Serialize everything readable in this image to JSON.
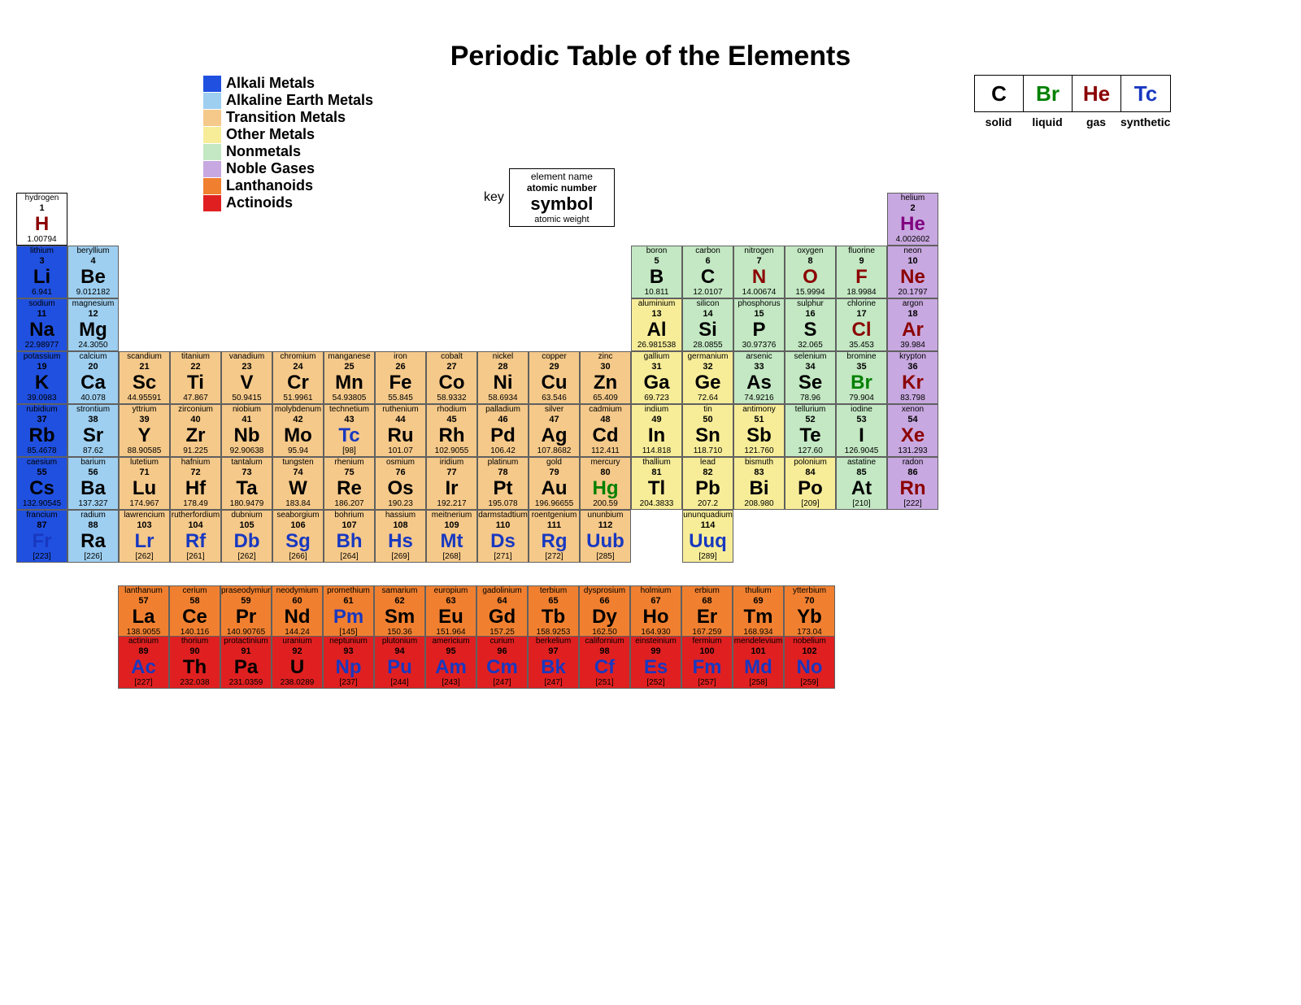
{
  "title": "Periodic Table of the Elements",
  "colors": {
    "alkali": "#2050e0",
    "alkaline_earth": "#9ecff0",
    "transition": "#f5c98a",
    "other_metal": "#f7ed99",
    "nonmetal": "#c3e8c3",
    "noble_gas": "#c8a8e0",
    "lanthanoid": "#f08030",
    "actinoid": "#e02020",
    "hydrogen_bg": "#ffffff",
    "text_black": "#000000",
    "text_darkred": "#8b0000",
    "text_green": "#008000",
    "text_blue": "#1838c0",
    "text_purple": "#800080"
  },
  "legend": [
    {
      "label": "Alkali Metals",
      "color_key": "alkali"
    },
    {
      "label": "Alkaline Earth Metals",
      "color_key": "alkaline_earth"
    },
    {
      "label": "Transition Metals",
      "color_key": "transition"
    },
    {
      "label": "Other Metals",
      "color_key": "other_metal"
    },
    {
      "label": "Nonmetals",
      "color_key": "nonmetal"
    },
    {
      "label": "Noble Gases",
      "color_key": "noble_gas"
    },
    {
      "label": "Lanthanoids",
      "color_key": "lanthanoid"
    },
    {
      "label": "Actinoids",
      "color_key": "actinoid"
    }
  ],
  "phases": [
    {
      "sym": "C",
      "label": "solid",
      "color_key": "text_black"
    },
    {
      "sym": "Br",
      "label": "liquid",
      "color_key": "text_green"
    },
    {
      "sym": "He",
      "label": "gas",
      "color_key": "text_darkred"
    },
    {
      "sym": "Tc",
      "label": "synthetic",
      "color_key": "text_blue"
    }
  ],
  "key": {
    "label": "key",
    "name": "element name",
    "atomic": "atomic number",
    "symbol": "symbol",
    "weight": "atomic weight"
  },
  "main_rows": [
    [
      {
        "n": "hydrogen",
        "a": "1",
        "s": "H",
        "w": "1.00794",
        "cat": "hydrogen_bg",
        "tc": "text_darkred",
        "nb": 1
      },
      null,
      null,
      null,
      null,
      null,
      null,
      null,
      null,
      null,
      null,
      null,
      null,
      null,
      null,
      null,
      null,
      {
        "n": "helium",
        "a": "2",
        "s": "He",
        "w": "4.002602",
        "cat": "noble_gas",
        "tc": "text_purple"
      }
    ],
    [
      {
        "n": "lithium",
        "a": "3",
        "s": "Li",
        "w": "6.941",
        "cat": "alkali",
        "tc": "text_black"
      },
      {
        "n": "beryllium",
        "a": "4",
        "s": "Be",
        "w": "9.012182",
        "cat": "alkaline_earth",
        "tc": "text_black"
      },
      null,
      null,
      null,
      null,
      null,
      null,
      null,
      null,
      null,
      null,
      {
        "n": "boron",
        "a": "5",
        "s": "B",
        "w": "10.811",
        "cat": "nonmetal",
        "tc": "text_black"
      },
      {
        "n": "carbon",
        "a": "6",
        "s": "C",
        "w": "12.0107",
        "cat": "nonmetal",
        "tc": "text_black"
      },
      {
        "n": "nitrogen",
        "a": "7",
        "s": "N",
        "w": "14.00674",
        "cat": "nonmetal",
        "tc": "text_darkred"
      },
      {
        "n": "oxygen",
        "a": "8",
        "s": "O",
        "w": "15.9994",
        "cat": "nonmetal",
        "tc": "text_darkred"
      },
      {
        "n": "fluorine",
        "a": "9",
        "s": "F",
        "w": "18.9984",
        "cat": "nonmetal",
        "tc": "text_darkred"
      },
      {
        "n": "neon",
        "a": "10",
        "s": "Ne",
        "w": "20.1797",
        "cat": "noble_gas",
        "tc": "text_darkred"
      }
    ],
    [
      {
        "n": "sodium",
        "a": "11",
        "s": "Na",
        "w": "22.98977",
        "cat": "alkali",
        "tc": "text_black"
      },
      {
        "n": "magnesium",
        "a": "12",
        "s": "Mg",
        "w": "24.3050",
        "cat": "alkaline_earth",
        "tc": "text_black"
      },
      null,
      null,
      null,
      null,
      null,
      null,
      null,
      null,
      null,
      null,
      {
        "n": "aluminium",
        "a": "13",
        "s": "Al",
        "w": "26.981538",
        "cat": "other_metal",
        "tc": "text_black"
      },
      {
        "n": "silicon",
        "a": "14",
        "s": "Si",
        "w": "28.0855",
        "cat": "nonmetal",
        "tc": "text_black"
      },
      {
        "n": "phosphorus",
        "a": "15",
        "s": "P",
        "w": "30.97376",
        "cat": "nonmetal",
        "tc": "text_black"
      },
      {
        "n": "sulphur",
        "a": "16",
        "s": "S",
        "w": "32.065",
        "cat": "nonmetal",
        "tc": "text_black"
      },
      {
        "n": "chlorine",
        "a": "17",
        "s": "Cl",
        "w": "35.453",
        "cat": "nonmetal",
        "tc": "text_darkred"
      },
      {
        "n": "argon",
        "a": "18",
        "s": "Ar",
        "w": "39.984",
        "cat": "noble_gas",
        "tc": "text_darkred"
      }
    ],
    [
      {
        "n": "potassium",
        "a": "19",
        "s": "K",
        "w": "39.0983",
        "cat": "alkali",
        "tc": "text_black"
      },
      {
        "n": "calcium",
        "a": "20",
        "s": "Ca",
        "w": "40.078",
        "cat": "alkaline_earth",
        "tc": "text_black"
      },
      {
        "n": "scandium",
        "a": "21",
        "s": "Sc",
        "w": "44.95591",
        "cat": "transition",
        "tc": "text_black"
      },
      {
        "n": "titanium",
        "a": "22",
        "s": "Ti",
        "w": "47.867",
        "cat": "transition",
        "tc": "text_black"
      },
      {
        "n": "vanadium",
        "a": "23",
        "s": "V",
        "w": "50.9415",
        "cat": "transition",
        "tc": "text_black"
      },
      {
        "n": "chromium",
        "a": "24",
        "s": "Cr",
        "w": "51.9961",
        "cat": "transition",
        "tc": "text_black"
      },
      {
        "n": "manganese",
        "a": "25",
        "s": "Mn",
        "w": "54.93805",
        "cat": "transition",
        "tc": "text_black"
      },
      {
        "n": "iron",
        "a": "26",
        "s": "Fe",
        "w": "55.845",
        "cat": "transition",
        "tc": "text_black"
      },
      {
        "n": "cobalt",
        "a": "27",
        "s": "Co",
        "w": "58.9332",
        "cat": "transition",
        "tc": "text_black"
      },
      {
        "n": "nickel",
        "a": "28",
        "s": "Ni",
        "w": "58.6934",
        "cat": "transition",
        "tc": "text_black"
      },
      {
        "n": "copper",
        "a": "29",
        "s": "Cu",
        "w": "63.546",
        "cat": "transition",
        "tc": "text_black"
      },
      {
        "n": "zinc",
        "a": "30",
        "s": "Zn",
        "w": "65.409",
        "cat": "transition",
        "tc": "text_black"
      },
      {
        "n": "gallium",
        "a": "31",
        "s": "Ga",
        "w": "69.723",
        "cat": "other_metal",
        "tc": "text_black"
      },
      {
        "n": "germanium",
        "a": "32",
        "s": "Ge",
        "w": "72.64",
        "cat": "other_metal",
        "tc": "text_black"
      },
      {
        "n": "arsenic",
        "a": "33",
        "s": "As",
        "w": "74.9216",
        "cat": "nonmetal",
        "tc": "text_black"
      },
      {
        "n": "selenium",
        "a": "34",
        "s": "Se",
        "w": "78.96",
        "cat": "nonmetal",
        "tc": "text_black"
      },
      {
        "n": "bromine",
        "a": "35",
        "s": "Br",
        "w": "79.904",
        "cat": "nonmetal",
        "tc": "text_green"
      },
      {
        "n": "krypton",
        "a": "36",
        "s": "Kr",
        "w": "83.798",
        "cat": "noble_gas",
        "tc": "text_darkred"
      }
    ],
    [
      {
        "n": "rubidium",
        "a": "37",
        "s": "Rb",
        "w": "85.4678",
        "cat": "alkali",
        "tc": "text_black"
      },
      {
        "n": "strontium",
        "a": "38",
        "s": "Sr",
        "w": "87.62",
        "cat": "alkaline_earth",
        "tc": "text_black"
      },
      {
        "n": "yttrium",
        "a": "39",
        "s": "Y",
        "w": "88.90585",
        "cat": "transition",
        "tc": "text_black"
      },
      {
        "n": "zirconium",
        "a": "40",
        "s": "Zr",
        "w": "91.225",
        "cat": "transition",
        "tc": "text_black"
      },
      {
        "n": "niobium",
        "a": "41",
        "s": "Nb",
        "w": "92.90638",
        "cat": "transition",
        "tc": "text_black"
      },
      {
        "n": "molybdenum",
        "a": "42",
        "s": "Mo",
        "w": "95.94",
        "cat": "transition",
        "tc": "text_black"
      },
      {
        "n": "technetium",
        "a": "43",
        "s": "Tc",
        "w": "[98]",
        "cat": "transition",
        "tc": "text_blue"
      },
      {
        "n": "ruthenium",
        "a": "44",
        "s": "Ru",
        "w": "101.07",
        "cat": "transition",
        "tc": "text_black"
      },
      {
        "n": "rhodium",
        "a": "45",
        "s": "Rh",
        "w": "102.9055",
        "cat": "transition",
        "tc": "text_black"
      },
      {
        "n": "palladium",
        "a": "46",
        "s": "Pd",
        "w": "106.42",
        "cat": "transition",
        "tc": "text_black"
      },
      {
        "n": "silver",
        "a": "47",
        "s": "Ag",
        "w": "107.8682",
        "cat": "transition",
        "tc": "text_black"
      },
      {
        "n": "cadmium",
        "a": "48",
        "s": "Cd",
        "w": "112.411",
        "cat": "transition",
        "tc": "text_black"
      },
      {
        "n": "indium",
        "a": "49",
        "s": "In",
        "w": "114.818",
        "cat": "other_metal",
        "tc": "text_black"
      },
      {
        "n": "tin",
        "a": "50",
        "s": "Sn",
        "w": "118.710",
        "cat": "other_metal",
        "tc": "text_black"
      },
      {
        "n": "antimony",
        "a": "51",
        "s": "Sb",
        "w": "121.760",
        "cat": "other_metal",
        "tc": "text_black"
      },
      {
        "n": "tellurium",
        "a": "52",
        "s": "Te",
        "w": "127.60",
        "cat": "nonmetal",
        "tc": "text_black"
      },
      {
        "n": "iodine",
        "a": "53",
        "s": "I",
        "w": "126.9045",
        "cat": "nonmetal",
        "tc": "text_black"
      },
      {
        "n": "xenon",
        "a": "54",
        "s": "Xe",
        "w": "131.293",
        "cat": "noble_gas",
        "tc": "text_darkred"
      }
    ],
    [
      {
        "n": "caesium",
        "a": "55",
        "s": "Cs",
        "w": "132.90545",
        "cat": "alkali",
        "tc": "text_black"
      },
      {
        "n": "barium",
        "a": "56",
        "s": "Ba",
        "w": "137.327",
        "cat": "alkaline_earth",
        "tc": "text_black"
      },
      {
        "n": "lutetium",
        "a": "71",
        "s": "Lu",
        "w": "174.967",
        "cat": "transition",
        "tc": "text_black"
      },
      {
        "n": "hafnium",
        "a": "72",
        "s": "Hf",
        "w": "178.49",
        "cat": "transition",
        "tc": "text_black"
      },
      {
        "n": "tantalum",
        "a": "73",
        "s": "Ta",
        "w": "180.9479",
        "cat": "transition",
        "tc": "text_black"
      },
      {
        "n": "tungsten",
        "a": "74",
        "s": "W",
        "w": "183.84",
        "cat": "transition",
        "tc": "text_black"
      },
      {
        "n": "rhenium",
        "a": "75",
        "s": "Re",
        "w": "186.207",
        "cat": "transition",
        "tc": "text_black"
      },
      {
        "n": "osmium",
        "a": "76",
        "s": "Os",
        "w": "190.23",
        "cat": "transition",
        "tc": "text_black"
      },
      {
        "n": "iridium",
        "a": "77",
        "s": "Ir",
        "w": "192.217",
        "cat": "transition",
        "tc": "text_black"
      },
      {
        "n": "platinum",
        "a": "78",
        "s": "Pt",
        "w": "195.078",
        "cat": "transition",
        "tc": "text_black"
      },
      {
        "n": "gold",
        "a": "79",
        "s": "Au",
        "w": "196.96655",
        "cat": "transition",
        "tc": "text_black"
      },
      {
        "n": "mercury",
        "a": "80",
        "s": "Hg",
        "w": "200.59",
        "cat": "transition",
        "tc": "text_green"
      },
      {
        "n": "thallium",
        "a": "81",
        "s": "Tl",
        "w": "204.3833",
        "cat": "other_metal",
        "tc": "text_black"
      },
      {
        "n": "lead",
        "a": "82",
        "s": "Pb",
        "w": "207.2",
        "cat": "other_metal",
        "tc": "text_black"
      },
      {
        "n": "bismuth",
        "a": "83",
        "s": "Bi",
        "w": "208.980",
        "cat": "other_metal",
        "tc": "text_black"
      },
      {
        "n": "polonium",
        "a": "84",
        "s": "Po",
        "w": "[209]",
        "cat": "other_metal",
        "tc": "text_black"
      },
      {
        "n": "astatine",
        "a": "85",
        "s": "At",
        "w": "[210]",
        "cat": "nonmetal",
        "tc": "text_black"
      },
      {
        "n": "radon",
        "a": "86",
        "s": "Rn",
        "w": "[222]",
        "cat": "noble_gas",
        "tc": "text_darkred"
      }
    ],
    [
      {
        "n": "francium",
        "a": "87",
        "s": "Fr",
        "w": "[223]",
        "cat": "alkali",
        "tc": "text_blue"
      },
      {
        "n": "radium",
        "a": "88",
        "s": "Ra",
        "w": "[226]",
        "cat": "alkaline_earth",
        "tc": "text_black"
      },
      {
        "n": "lawrencium",
        "a": "103",
        "s": "Lr",
        "w": "[262]",
        "cat": "transition",
        "tc": "text_blue"
      },
      {
        "n": "rutherfordium",
        "a": "104",
        "s": "Rf",
        "w": "[261]",
        "cat": "transition",
        "tc": "text_blue"
      },
      {
        "n": "dubnium",
        "a": "105",
        "s": "Db",
        "w": "[262]",
        "cat": "transition",
        "tc": "text_blue"
      },
      {
        "n": "seaborgium",
        "a": "106",
        "s": "Sg",
        "w": "[266]",
        "cat": "transition",
        "tc": "text_blue"
      },
      {
        "n": "bohrium",
        "a": "107",
        "s": "Bh",
        "w": "[264]",
        "cat": "transition",
        "tc": "text_blue"
      },
      {
        "n": "hassium",
        "a": "108",
        "s": "Hs",
        "w": "[269]",
        "cat": "transition",
        "tc": "text_blue"
      },
      {
        "n": "meitnerium",
        "a": "109",
        "s": "Mt",
        "w": "[268]",
        "cat": "transition",
        "tc": "text_blue"
      },
      {
        "n": "darmstadtium",
        "a": "110",
        "s": "Ds",
        "w": "[271]",
        "cat": "transition",
        "tc": "text_blue"
      },
      {
        "n": "roentgenium",
        "a": "111",
        "s": "Rg",
        "w": "[272]",
        "cat": "transition",
        "tc": "text_blue"
      },
      {
        "n": "ununbium",
        "a": "112",
        "s": "Uub",
        "w": "[285]",
        "cat": "transition",
        "tc": "text_blue"
      },
      null,
      {
        "n": "ununquadium",
        "a": "114",
        "s": "Uuq",
        "w": "[289]",
        "cat": "other_metal",
        "tc": "text_blue"
      },
      null,
      null,
      null,
      null
    ]
  ],
  "lanthanoids": [
    {
      "n": "lanthanum",
      "a": "57",
      "s": "La",
      "w": "138.9055",
      "cat": "lanthanoid",
      "tc": "text_black"
    },
    {
      "n": "cerium",
      "a": "58",
      "s": "Ce",
      "w": "140.116",
      "cat": "lanthanoid",
      "tc": "text_black"
    },
    {
      "n": "praseodymium",
      "a": "59",
      "s": "Pr",
      "w": "140.90765",
      "cat": "lanthanoid",
      "tc": "text_black"
    },
    {
      "n": "neodymium",
      "a": "60",
      "s": "Nd",
      "w": "144.24",
      "cat": "lanthanoid",
      "tc": "text_black"
    },
    {
      "n": "promethium",
      "a": "61",
      "s": "Pm",
      "w": "[145]",
      "cat": "lanthanoid",
      "tc": "text_blue"
    },
    {
      "n": "samarium",
      "a": "62",
      "s": "Sm",
      "w": "150.36",
      "cat": "lanthanoid",
      "tc": "text_black"
    },
    {
      "n": "europium",
      "a": "63",
      "s": "Eu",
      "w": "151.964",
      "cat": "lanthanoid",
      "tc": "text_black"
    },
    {
      "n": "gadolinium",
      "a": "64",
      "s": "Gd",
      "w": "157.25",
      "cat": "lanthanoid",
      "tc": "text_black"
    },
    {
      "n": "terbium",
      "a": "65",
      "s": "Tb",
      "w": "158.9253",
      "cat": "lanthanoid",
      "tc": "text_black"
    },
    {
      "n": "dysprosium",
      "a": "66",
      "s": "Dy",
      "w": "162.50",
      "cat": "lanthanoid",
      "tc": "text_black"
    },
    {
      "n": "holmium",
      "a": "67",
      "s": "Ho",
      "w": "164.930",
      "cat": "lanthanoid",
      "tc": "text_black"
    },
    {
      "n": "erbium",
      "a": "68",
      "s": "Er",
      "w": "167.259",
      "cat": "lanthanoid",
      "tc": "text_black"
    },
    {
      "n": "thulium",
      "a": "69",
      "s": "Tm",
      "w": "168.934",
      "cat": "lanthanoid",
      "tc": "text_black"
    },
    {
      "n": "ytterbium",
      "a": "70",
      "s": "Yb",
      "w": "173.04",
      "cat": "lanthanoid",
      "tc": "text_black"
    }
  ],
  "actinoids": [
    {
      "n": "actinium",
      "a": "89",
      "s": "Ac",
      "w": "[227]",
      "cat": "actinoid",
      "tc": "text_blue"
    },
    {
      "n": "thorium",
      "a": "90",
      "s": "Th",
      "w": "232.038",
      "cat": "actinoid",
      "tc": "text_black"
    },
    {
      "n": "protactinium",
      "a": "91",
      "s": "Pa",
      "w": "231.0359",
      "cat": "actinoid",
      "tc": "text_black"
    },
    {
      "n": "uranium",
      "a": "92",
      "s": "U",
      "w": "238.0289",
      "cat": "actinoid",
      "tc": "text_black"
    },
    {
      "n": "neptunium",
      "a": "93",
      "s": "Np",
      "w": "[237]",
      "cat": "actinoid",
      "tc": "text_blue"
    },
    {
      "n": "plutonium",
      "a": "94",
      "s": "Pu",
      "w": "[244]",
      "cat": "actinoid",
      "tc": "text_blue"
    },
    {
      "n": "americium",
      "a": "95",
      "s": "Am",
      "w": "[243]",
      "cat": "actinoid",
      "tc": "text_blue"
    },
    {
      "n": "curium",
      "a": "96",
      "s": "Cm",
      "w": "[247]",
      "cat": "actinoid",
      "tc": "text_blue"
    },
    {
      "n": "berkelium",
      "a": "97",
      "s": "Bk",
      "w": "[247]",
      "cat": "actinoid",
      "tc": "text_blue"
    },
    {
      "n": "californium",
      "a": "98",
      "s": "Cf",
      "w": "[251]",
      "cat": "actinoid",
      "tc": "text_blue"
    },
    {
      "n": "einsteinium",
      "a": "99",
      "s": "Es",
      "w": "[252]",
      "cat": "actinoid",
      "tc": "text_blue"
    },
    {
      "n": "fermium",
      "a": "100",
      "s": "Fm",
      "w": "[257]",
      "cat": "actinoid",
      "tc": "text_blue"
    },
    {
      "n": "mendelevium",
      "a": "101",
      "s": "Md",
      "w": "[258]",
      "cat": "actinoid",
      "tc": "text_blue"
    },
    {
      "n": "nobelium",
      "a": "102",
      "s": "No",
      "w": "[259]",
      "cat": "actinoid",
      "tc": "text_blue"
    }
  ]
}
